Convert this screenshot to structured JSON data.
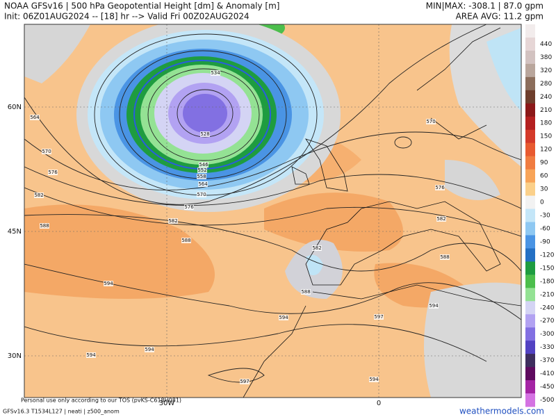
{
  "header": {
    "title": "NOAA GFSv16 | 500 hPa Geopotential Height [dm] & Anomaly [m]",
    "init": "Init: 06Z01AUG2024 -- [18] hr --> Valid Fri 00Z02AUG2024",
    "minmax": "MIN|MAX: -308.1 | 87.0 gpm",
    "area_avg": "AREA AVG: 11.2 gpm"
  },
  "map": {
    "lat_labels": [
      "60N",
      "45N",
      "30N"
    ],
    "lon_labels": [
      "30W",
      "0"
    ],
    "contour_labels": [
      "534",
      "528",
      "546",
      "552",
      "558",
      "564",
      "570",
      "576",
      "582",
      "588",
      "594",
      "594",
      "594",
      "594",
      "597",
      "597",
      "594",
      "588",
      "582",
      "576",
      "570",
      "582",
      "588",
      "594",
      "564",
      "570",
      "576",
      "582",
      "588"
    ]
  },
  "colorbar": {
    "entries": [
      {
        "label": "440",
        "color": "#e6d6d6"
      },
      {
        "label": "380",
        "color": "#d2c2c0"
      },
      {
        "label": "320",
        "color": "#b9a69c"
      },
      {
        "label": "280",
        "color": "#8c6e5c"
      },
      {
        "label": "240",
        "color": "#6e3e2c"
      },
      {
        "label": "210",
        "color": "#8b1818"
      },
      {
        "label": "180",
        "color": "#b42020"
      },
      {
        "label": "150",
        "color": "#d43a2a"
      },
      {
        "label": "120",
        "color": "#e85a30"
      },
      {
        "label": "90",
        "color": "#f07c40"
      },
      {
        "label": "60",
        "color": "#f8a458"
      },
      {
        "label": "30",
        "color": "#fbd08a"
      },
      {
        "label": "0",
        "color": "#f2f2f2"
      },
      {
        "label": "-30",
        "color": "#c4e6f8"
      },
      {
        "label": "-60",
        "color": "#8ec8f2"
      },
      {
        "label": "-90",
        "color": "#4a94e4"
      },
      {
        "label": "-120",
        "color": "#2470c4"
      },
      {
        "label": "-150",
        "color": "#1e9c40"
      },
      {
        "label": "-180",
        "color": "#4cbe4c"
      },
      {
        "label": "-210",
        "color": "#94e294"
      },
      {
        "label": "-240",
        "color": "#d4d4f4"
      },
      {
        "label": "-270",
        "color": "#b2a2f2"
      },
      {
        "label": "-300",
        "color": "#8270e2"
      },
      {
        "label": "-330",
        "color": "#5242c2"
      },
      {
        "label": "-370",
        "color": "#3e2e5e"
      },
      {
        "label": "-410",
        "color": "#5e0a5e"
      },
      {
        "label": "-450",
        "color": "#a424a4"
      },
      {
        "label": "-500",
        "color": "#d472e2"
      }
    ]
  },
  "footer": {
    "tos": "Personal use only according to our TOS (pvKS-C618H081)",
    "model": "GFSv16.3 T1534L127 | neati | z500_anom",
    "site": "weathermodels.com"
  }
}
